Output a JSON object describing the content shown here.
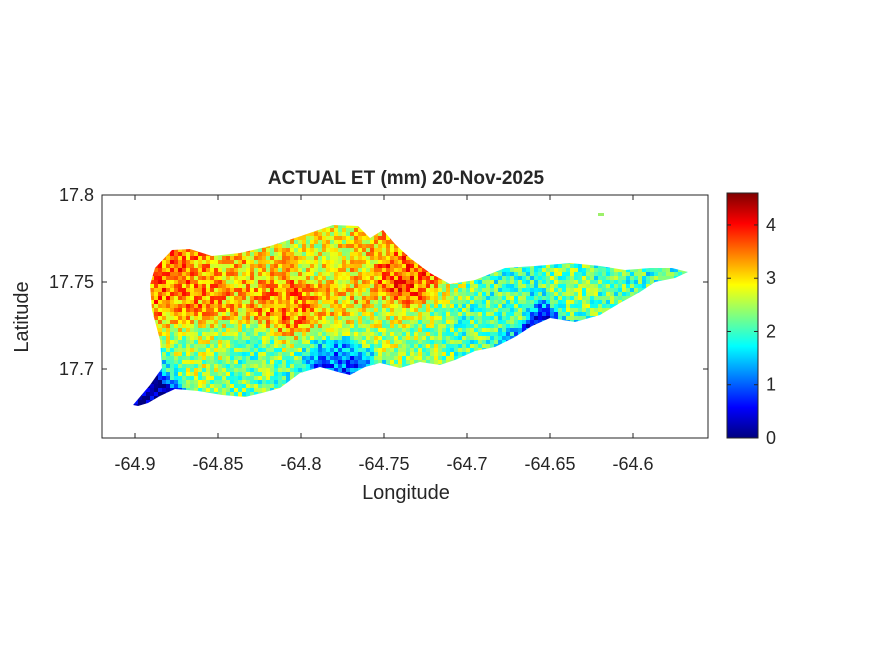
{
  "chart_data": {
    "type": "heatmap",
    "title": "ACTUAL ET (mm) 20-Nov-2025",
    "xlabel": "Longitude",
    "ylabel": "Latitude",
    "xlim": [
      -64.92,
      -64.55
    ],
    "ylim": [
      17.655,
      17.8
    ],
    "xticks": [
      -64.9,
      -64.85,
      -64.8,
      -64.75,
      -64.7,
      -64.65,
      -64.6
    ],
    "xtick_labels": [
      "-64.9",
      "-64.85",
      "-64.8",
      "-64.75",
      "-64.7",
      "-64.65",
      "-64.6"
    ],
    "yticks": [
      17.7,
      17.75,
      17.8
    ],
    "ytick_labels": [
      "17.7",
      "17.75",
      "17.8"
    ],
    "colorbar": {
      "colormap": "jet",
      "range": [
        0,
        4.6
      ],
      "ticks": [
        0,
        1,
        2,
        3,
        4
      ],
      "tick_labels": [
        "0",
        "1",
        "2",
        "3",
        "4"
      ]
    },
    "grid": false,
    "region_values": [
      {
        "lon": -64.88,
        "lat": 17.755,
        "value": 3.5
      },
      {
        "lon": -64.86,
        "lat": 17.745,
        "value": 3.3
      },
      {
        "lon": -64.84,
        "lat": 17.76,
        "value": 3.1
      },
      {
        "lon": -64.82,
        "lat": 17.77,
        "value": 2.9
      },
      {
        "lon": -64.81,
        "lat": 17.74,
        "value": 3.4
      },
      {
        "lon": -64.79,
        "lat": 17.765,
        "value": 2.8
      },
      {
        "lon": -64.77,
        "lat": 17.745,
        "value": 3.0
      },
      {
        "lon": -64.86,
        "lat": 17.71,
        "value": 2.5
      },
      {
        "lon": -64.83,
        "lat": 17.705,
        "value": 2.2
      },
      {
        "lon": -64.75,
        "lat": 17.73,
        "value": 2.6
      },
      {
        "lon": -64.74,
        "lat": 17.75,
        "value": 3.6
      },
      {
        "lon": -64.72,
        "lat": 17.725,
        "value": 2.4
      },
      {
        "lon": -64.7,
        "lat": 17.72,
        "value": 2.1
      },
      {
        "lon": -64.67,
        "lat": 17.735,
        "value": 2.2
      },
      {
        "lon": -64.64,
        "lat": 17.745,
        "value": 2.3
      },
      {
        "lon": -64.61,
        "lat": 17.748,
        "value": 2.1
      },
      {
        "lon": -64.585,
        "lat": 17.752,
        "value": 2.0
      },
      {
        "lon": -64.66,
        "lat": 17.727,
        "value": 0.6
      },
      {
        "lon": -64.898,
        "lat": 17.681,
        "value": 0.1
      },
      {
        "lon": -64.777,
        "lat": 17.698,
        "value": 1.0
      }
    ]
  }
}
